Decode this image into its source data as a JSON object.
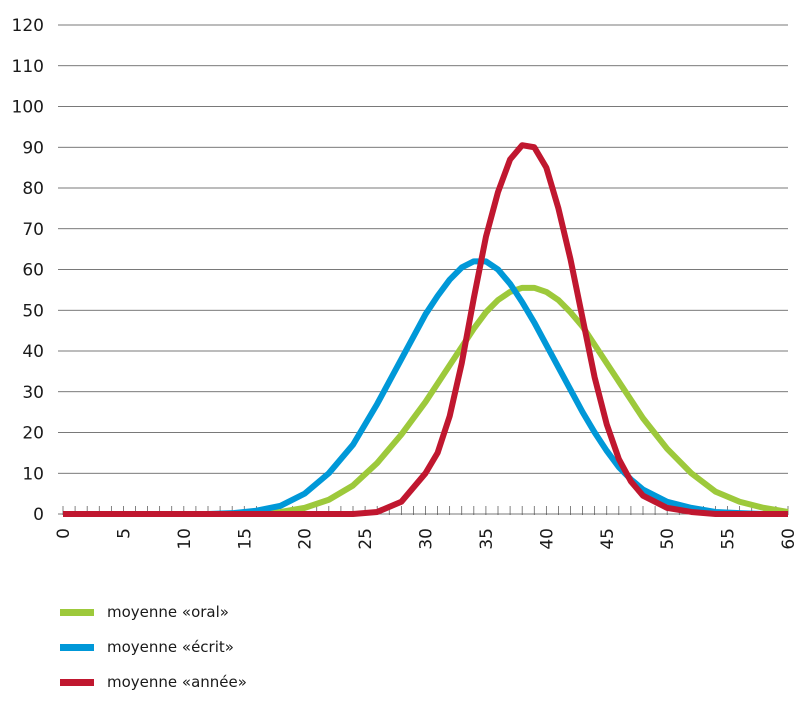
{
  "chart_data": {
    "type": "line",
    "title": "",
    "xlabel": "",
    "ylabel": "",
    "xlim": [
      0,
      60
    ],
    "ylim": [
      0,
      120
    ],
    "x_ticks": [
      0,
      5,
      10,
      15,
      20,
      25,
      30,
      35,
      40,
      45,
      50,
      55,
      60
    ],
    "y_ticks": [
      0,
      10,
      20,
      30,
      40,
      50,
      60,
      70,
      80,
      90,
      100,
      110,
      120
    ],
    "grid": "horizontal",
    "legend_position": "bottom-left",
    "x": [
      0,
      2,
      4,
      6,
      8,
      10,
      12,
      14,
      16,
      18,
      20,
      22,
      24,
      26,
      28,
      30,
      31,
      32,
      33,
      34,
      35,
      36,
      37,
      38,
      39,
      40,
      41,
      42,
      43,
      44,
      45,
      46,
      47,
      48,
      50,
      52,
      54,
      56,
      58,
      60
    ],
    "series": [
      {
        "name": "moyenne «oral»",
        "color": "#9dc93b",
        "values": [
          0,
          0,
          0,
          0,
          0,
          0,
          0,
          0,
          0.1,
          0.5,
          1.5,
          3.5,
          7,
          12.5,
          19.5,
          27.5,
          32,
          36.5,
          41,
          45.5,
          49.5,
          52.5,
          54.5,
          55.5,
          55.5,
          54.5,
          52.5,
          49.5,
          46,
          41.5,
          37,
          32.5,
          28,
          23.5,
          16,
          10,
          5.5,
          3,
          1.5,
          0.5
        ]
      },
      {
        "name": "moyenne «écrit»",
        "color": "#0098d8",
        "values": [
          0,
          0,
          0,
          0,
          0,
          0,
          0,
          0.2,
          0.8,
          2,
          5,
          10,
          17,
          27,
          38,
          49,
          53.5,
          57.5,
          60.5,
          62,
          62,
          60,
          56.5,
          52,
          47,
          41.5,
          36,
          30.5,
          25,
          20,
          15.5,
          11.5,
          8.5,
          6,
          3,
          1.5,
          0.5,
          0.2,
          0,
          0
        ]
      },
      {
        "name": "moyenne «année»",
        "color": "#c0172f",
        "values": [
          0,
          0,
          0,
          0,
          0,
          0,
          0,
          0,
          0,
          0,
          0,
          0,
          0,
          0.5,
          3,
          10,
          15,
          24,
          37,
          53,
          68,
          79,
          87,
          90.5,
          90,
          85,
          75,
          62.5,
          48,
          33.5,
          22,
          13.5,
          8,
          4.5,
          1.5,
          0.5,
          0,
          0,
          0,
          0
        ]
      }
    ]
  }
}
